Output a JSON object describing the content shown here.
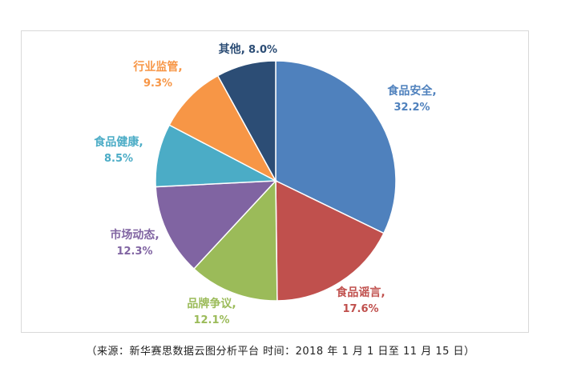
{
  "chart_data": {
    "type": "pie",
    "title": "",
    "slices": [
      {
        "label": "食品安全",
        "value": 32.2,
        "pct_text": "32.2%",
        "color": "#4F81BD"
      },
      {
        "label": "食品谣言",
        "value": 17.6,
        "pct_text": "17.6%",
        "color": "#C0504D"
      },
      {
        "label": "品牌争议",
        "value": 12.1,
        "pct_text": "12.1%",
        "color": "#9BBB59"
      },
      {
        "label": "市场动态",
        "value": 12.3,
        "pct_text": "12.3%",
        "color": "#8064A2"
      },
      {
        "label": "食品健康",
        "value": 8.5,
        "pct_text": "8.5%",
        "color": "#4BACC6"
      },
      {
        "label": "行业监管",
        "value": 9.3,
        "pct_text": "9.3%",
        "color": "#F79646"
      },
      {
        "label": "其他",
        "value": 8.0,
        "pct_text": "8.0%",
        "color": "#2C4D75"
      }
    ],
    "start_angle": "12 o'clock",
    "direction": "clockwise"
  },
  "footer": {
    "source_note": "（来源：新华赛思数据云图分析平台 时间：2018 年 1 月 1 日至 11 月 15 日）"
  }
}
